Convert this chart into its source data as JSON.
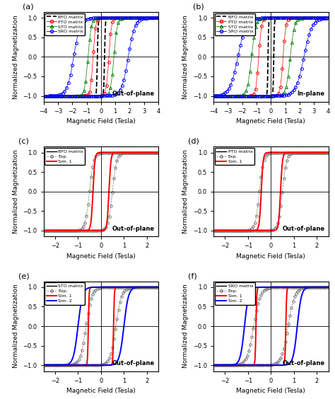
{
  "ylabel": "Normalized Magnetization",
  "xlabel": "Magnetic Field (Tesla)",
  "figsize": [
    4.74,
    5.64
  ],
  "dpi": 100,
  "panel_labels": [
    "(a)",
    "(b)",
    "(c)",
    "(d)",
    "(e)",
    "(f)"
  ],
  "panel_notes_ab": [
    "Out-of-plane",
    "In-plane"
  ],
  "panel_notes_cdef": [
    "Out-of-plane",
    "Out-of-plane",
    "Out-of-plane",
    "Out-of-plane"
  ],
  "ab_xlim": [
    -4,
    4
  ],
  "ab_xticks": [
    -4,
    -3,
    -2,
    -1,
    0,
    1,
    2,
    3,
    4
  ],
  "cdef_xlim": [
    -2.5,
    2.5
  ],
  "cdef_xticks": [
    -2,
    -1,
    0,
    1,
    2
  ],
  "ylim": [
    -1.15,
    1.15
  ],
  "yticks": [
    -1.0,
    -0.5,
    0.0,
    0.5,
    1.0
  ]
}
